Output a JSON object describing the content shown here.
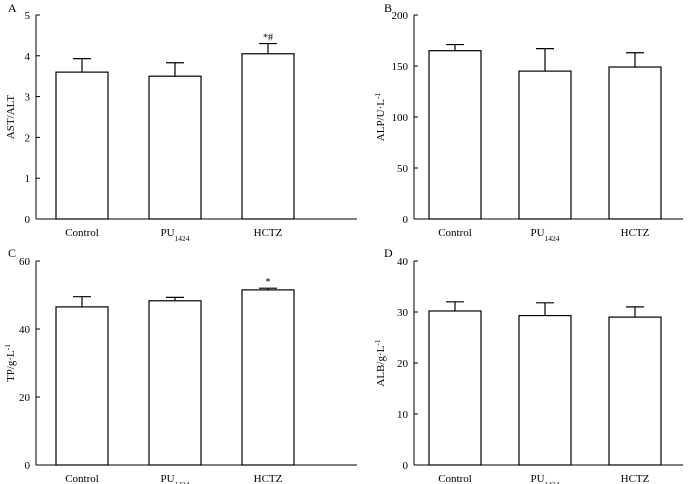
{
  "chart_data": [
    {
      "type": "bar",
      "panel": "A",
      "ylabel": "AST/ALT",
      "ylim": [
        0,
        5
      ],
      "yticks": [
        0,
        1,
        2,
        3,
        4,
        5
      ],
      "categories": [
        "Control",
        "PU",
        "HCTZ"
      ],
      "category_subscripts": [
        "",
        "1424",
        ""
      ],
      "values": [
        3.6,
        3.5,
        4.05
      ],
      "errors": [
        0.33,
        0.33,
        0.25
      ],
      "annotations": [
        "",
        "",
        "*#"
      ]
    },
    {
      "type": "bar",
      "panel": "B",
      "ylabel": "ALP/U·L",
      "ylabel_sup": "-1",
      "ylim": [
        0,
        200
      ],
      "yticks": [
        0,
        50,
        100,
        150,
        200
      ],
      "categories": [
        "Control",
        "PU",
        "HCTZ"
      ],
      "category_subscripts": [
        "",
        "1424",
        ""
      ],
      "values": [
        165,
        145,
        149
      ],
      "errors": [
        6,
        22,
        14
      ],
      "annotations": [
        "",
        "",
        ""
      ]
    },
    {
      "type": "bar",
      "panel": "C",
      "ylabel": "TP/g·L",
      "ylabel_sup": "-1",
      "ylim": [
        0,
        60
      ],
      "yticks": [
        0,
        20,
        40,
        60
      ],
      "categories": [
        "Control",
        "PU",
        "HCTZ"
      ],
      "category_subscripts": [
        "",
        "1424",
        ""
      ],
      "values": [
        46.5,
        48.3,
        51.5
      ],
      "errors": [
        3,
        1,
        0.5
      ],
      "annotations": [
        "",
        "",
        "*"
      ]
    },
    {
      "type": "bar",
      "panel": "D",
      "ylabel": "ALB/g·L",
      "ylabel_sup": "-1",
      "ylim": [
        0,
        40
      ],
      "yticks": [
        0,
        10,
        20,
        30,
        40
      ],
      "categories": [
        "Control",
        "PU",
        "HCTZ"
      ],
      "category_subscripts": [
        "",
        "1424",
        ""
      ],
      "values": [
        30.2,
        29.3,
        29
      ],
      "errors": [
        1.8,
        2.5,
        2
      ],
      "annotations": [
        "",
        "",
        ""
      ]
    }
  ]
}
